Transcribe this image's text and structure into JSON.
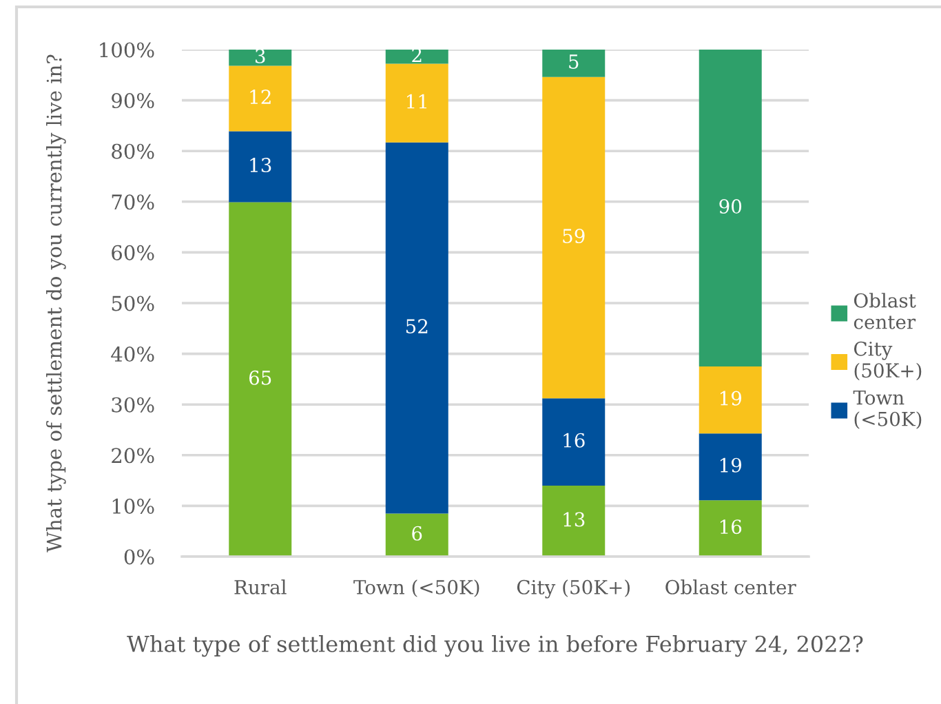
{
  "chart_data": {
    "type": "bar",
    "stacked": true,
    "xlabel": "What type of settlement did you live in before February 24, 2022?",
    "ylabel": "What type of settlement do you currently live in?",
    "categories": [
      "Rural",
      "Town (<50K)",
      "City (50K+)",
      "Oblast center"
    ],
    "series": [
      {
        "color": "#76b82a",
        "values": [
          69.9,
          8.5,
          14.0,
          11.1
        ]
      },
      {
        "name": "Town (<50K)",
        "color": "#00519c",
        "values": [
          14.0,
          73.2,
          17.2,
          13.2
        ]
      },
      {
        "name": "City (50K+)",
        "color": "#f9c21b",
        "values": [
          12.9,
          15.5,
          63.4,
          13.2
        ]
      },
      {
        "name": "Oblast center",
        "color": "#2ea06a",
        "values": [
          3.2,
          2.8,
          5.4,
          62.5
        ]
      }
    ],
    "annotations": [
      "65",
      "13",
      "12",
      "3",
      "6",
      "52",
      "11",
      "2",
      "13",
      "16",
      "59",
      "5",
      "16",
      "19",
      "19",
      "90"
    ],
    "ylim": [
      0,
      100
    ],
    "yticks": [
      {
        "value": 0,
        "label": "0%"
      },
      {
        "value": 10,
        "label": "10%"
      },
      {
        "value": 20,
        "label": "20%"
      },
      {
        "value": 30,
        "label": "30%"
      },
      {
        "value": 40,
        "label": "40%"
      },
      {
        "value": 50,
        "label": "50%"
      },
      {
        "value": 60,
        "label": "60%"
      },
      {
        "value": 70,
        "label": "70%"
      },
      {
        "value": 80,
        "label": "80%"
      },
      {
        "value": 90,
        "label": "90%"
      },
      {
        "value": 100,
        "label": "100%"
      }
    ],
    "grid": "y",
    "legend": "right"
  }
}
